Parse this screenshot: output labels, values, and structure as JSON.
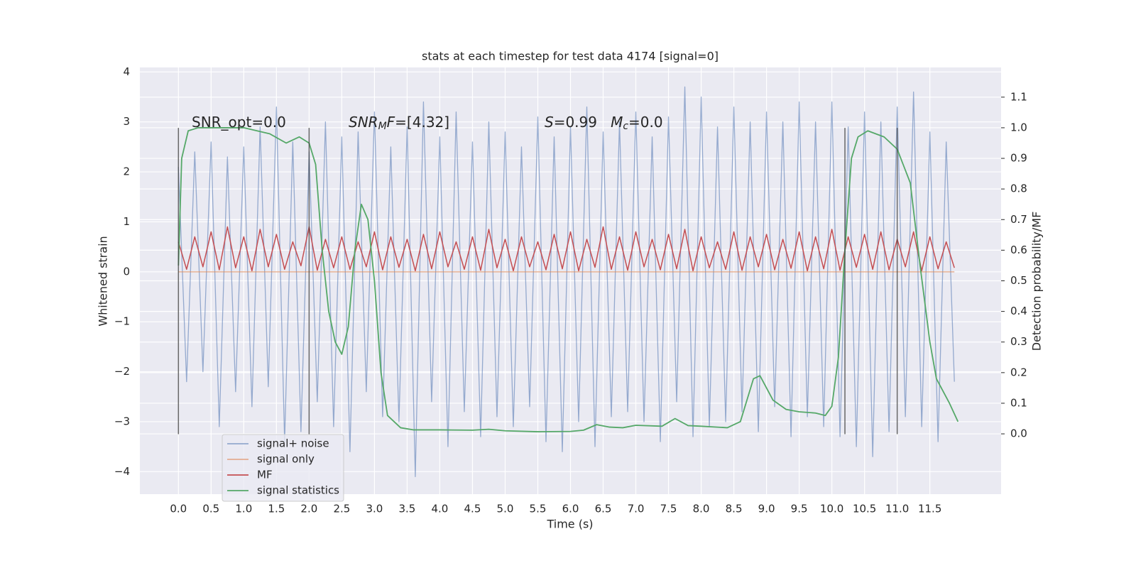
{
  "chart_data": {
    "type": "line",
    "title": "stats at each timestep for test data 4174 [signal=0]",
    "xlabel": "Time (s)",
    "ylabel": "Whitened strain",
    "y2label": "Detection probability/MF",
    "annotations": [
      [
        "SNR_opt=0.0"
      ],
      [
        "SNR",
        "M",
        "F",
        "=[4.32]"
      ],
      [
        "S",
        "=0.99   ",
        "M",
        "c",
        "=0.0"
      ]
    ],
    "vlines": [
      0,
      2.0,
      10.2,
      11.0
    ],
    "vline_range": [
      -3.25,
      2.88
    ],
    "xlim": [
      -0.59,
      12.59
    ],
    "ylim": [
      -4.45,
      4.09
    ],
    "y2lim": [
      -0.197,
      1.197
    ],
    "xticks": [
      {
        "value": 0,
        "label": "0.0"
      },
      {
        "value": 0.5,
        "label": "0.5"
      },
      {
        "value": 1,
        "label": "1.0"
      },
      {
        "value": 1.5,
        "label": "1.5"
      },
      {
        "value": 2,
        "label": "2.0"
      },
      {
        "value": 2.5,
        "label": "2.5"
      },
      {
        "value": 3,
        "label": "3.0"
      },
      {
        "value": 3.5,
        "label": "3.5"
      },
      {
        "value": 4,
        "label": "4.0"
      },
      {
        "value": 4.5,
        "label": "4.5"
      },
      {
        "value": 5,
        "label": "5.0"
      },
      {
        "value": 5.5,
        "label": "5.5"
      },
      {
        "value": 6,
        "label": "6.0"
      },
      {
        "value": 6.5,
        "label": "6.5"
      },
      {
        "value": 7,
        "label": "7.0"
      },
      {
        "value": 7.5,
        "label": "7.5"
      },
      {
        "value": 8,
        "label": "8.0"
      },
      {
        "value": 8.5,
        "label": "8.5"
      },
      {
        "value": 9,
        "label": "9.0"
      },
      {
        "value": 9.5,
        "label": "9.5"
      },
      {
        "value": 10,
        "label": "10.0"
      },
      {
        "value": 10.5,
        "label": "10.5"
      },
      {
        "value": 11,
        "label": "11.0"
      },
      {
        "value": 11.5,
        "label": "11.5"
      }
    ],
    "yticks": [
      {
        "value": -4,
        "label": "−4"
      },
      {
        "value": -3,
        "label": "−3"
      },
      {
        "value": -2,
        "label": "−2"
      },
      {
        "value": -1,
        "label": "−1"
      },
      0,
      1,
      2,
      3,
      4
    ],
    "y2ticks": [
      {
        "value": 0,
        "label": "0.0"
      },
      {
        "value": 0.1,
        "label": "0.1"
      },
      {
        "value": 0.2,
        "label": "0.2"
      },
      {
        "value": 0.3,
        "label": "0.3"
      },
      {
        "value": 0.4,
        "label": "0.4"
      },
      {
        "value": 0.5,
        "label": "0.5"
      },
      {
        "value": 0.6,
        "label": "0.6"
      },
      {
        "value": 0.7,
        "label": "0.7"
      },
      {
        "value": 0.8,
        "label": "0.8"
      },
      {
        "value": 0.9,
        "label": "0.9"
      },
      {
        "value": 1,
        "label": "1.0"
      },
      {
        "value": 1.1,
        "label": "1.1"
      }
    ],
    "grid": true,
    "legend": "lower left",
    "series": [
      {
        "name": "signal+ noise",
        "color": "#4c72b0",
        "x": [
          0,
          0.125,
          0.25,
          0.375,
          0.5,
          0.625,
          0.75,
          0.875,
          1,
          1.125,
          1.25,
          1.375,
          1.5,
          1.625,
          1.75,
          1.875,
          2,
          2.125,
          2.25,
          2.375,
          2.5,
          2.625,
          2.75,
          2.875,
          3,
          3.125,
          3.25,
          3.375,
          3.5,
          3.625,
          3.75,
          3.875,
          4,
          4.125,
          4.25,
          4.375,
          4.5,
          4.625,
          4.75,
          4.875,
          5,
          5.125,
          5.25,
          5.375,
          5.5,
          5.625,
          5.75,
          5.875,
          6,
          6.125,
          6.25,
          6.375,
          6.5,
          6.625,
          6.75,
          6.875,
          7,
          7.125,
          7.25,
          7.375,
          7.5,
          7.625,
          7.75,
          7.875,
          8,
          8.125,
          8.25,
          8.375,
          8.5,
          8.625,
          8.75,
          8.875,
          9,
          9.125,
          9.25,
          9.375,
          9.5,
          9.625,
          9.75,
          9.875,
          10,
          10.125,
          10.25,
          10.375,
          10.5,
          10.625,
          10.75,
          10.875,
          11,
          11.125,
          11.25,
          11.375,
          11.5,
          11.625,
          11.75,
          11.875
        ],
        "values": [
          2.1,
          -2.2,
          2.4,
          -2.0,
          2.6,
          -3.1,
          2.3,
          -2.4,
          2.5,
          -2.7,
          2.9,
          -2.3,
          3.3,
          -3.4,
          2.6,
          -3.2,
          2.4,
          -2.6,
          3.0,
          -3.1,
          2.7,
          -3.6,
          2.8,
          -2.4,
          3.2,
          -2.9,
          2.5,
          -3.0,
          2.9,
          -4.1,
          3.4,
          -2.6,
          2.7,
          -3.5,
          3.2,
          -2.8,
          2.6,
          -3.3,
          3.0,
          -2.9,
          2.8,
          -3.1,
          2.5,
          -2.7,
          3.1,
          -3.4,
          2.7,
          -3.6,
          2.9,
          -3.0,
          3.3,
          -3.5,
          2.8,
          -2.9,
          3.0,
          -2.8,
          3.2,
          -3.0,
          2.7,
          -3.4,
          3.1,
          -2.6,
          3.7,
          -3.3,
          3.5,
          -3.1,
          2.9,
          -3.0,
          3.3,
          -2.8,
          3.0,
          -3.2,
          3.2,
          -2.7,
          3.0,
          -3.3,
          3.4,
          -2.9,
          3.0,
          -3.1,
          3.4,
          -3.3,
          2.9,
          -3.5,
          3.2,
          -3.7,
          3.0,
          -3.2,
          3.3,
          -2.9,
          3.6,
          -3.1,
          2.8,
          -3.4,
          2.6,
          -2.2
        ]
      },
      {
        "name": "signal only",
        "color": "#dd8452",
        "x": [
          0,
          11.875
        ],
        "values": [
          0,
          0
        ]
      },
      {
        "name": "MF",
        "color": "#c44e52",
        "x": [
          0,
          0.125,
          0.25,
          0.375,
          0.5,
          0.625,
          0.75,
          0.875,
          1,
          1.125,
          1.25,
          1.375,
          1.5,
          1.625,
          1.75,
          1.875,
          2,
          2.125,
          2.25,
          2.375,
          2.5,
          2.625,
          2.75,
          2.875,
          3,
          3.125,
          3.25,
          3.375,
          3.5,
          3.625,
          3.75,
          3.875,
          4,
          4.125,
          4.25,
          4.375,
          4.5,
          4.625,
          4.75,
          4.875,
          5,
          5.125,
          5.25,
          5.375,
          5.5,
          5.625,
          5.75,
          5.875,
          6,
          6.125,
          6.25,
          6.375,
          6.5,
          6.625,
          6.75,
          6.875,
          7,
          7.125,
          7.25,
          7.375,
          7.5,
          7.625,
          7.75,
          7.875,
          8,
          8.125,
          8.25,
          8.375,
          8.5,
          8.625,
          8.75,
          8.875,
          9,
          9.125,
          9.25,
          9.375,
          9.5,
          9.625,
          9.75,
          9.875,
          10,
          10.125,
          10.25,
          10.375,
          10.5,
          10.625,
          10.75,
          10.875,
          11,
          11.125,
          11.25,
          11.375,
          11.5,
          11.625,
          11.75,
          11.875
        ],
        "values": [
          0.6,
          0.05,
          0.7,
          0.1,
          0.8,
          0.04,
          0.9,
          0.08,
          0.7,
          0.02,
          0.85,
          0.1,
          0.75,
          0.05,
          0.6,
          0.12,
          0.9,
          0.03,
          0.65,
          0.08,
          0.7,
          0.05,
          0.6,
          0.1,
          0.8,
          0.04,
          0.7,
          0.09,
          0.65,
          0.02,
          0.75,
          0.06,
          0.8,
          0.1,
          0.6,
          0.05,
          0.7,
          0.03,
          0.85,
          0.08,
          0.65,
          0.02,
          0.7,
          0.1,
          0.6,
          0.04,
          0.75,
          0.06,
          0.8,
          0.02,
          0.65,
          0.09,
          0.9,
          0.05,
          0.7,
          0.03,
          0.8,
          0.1,
          0.65,
          0.04,
          0.75,
          0.06,
          0.85,
          0.02,
          0.7,
          0.08,
          0.6,
          0.05,
          0.8,
          0.03,
          0.7,
          0.1,
          0.75,
          0.04,
          0.65,
          0.07,
          0.8,
          0.02,
          0.7,
          0.06,
          0.85,
          0.03,
          0.7,
          0.09,
          0.75,
          0.05,
          0.8,
          0.04,
          0.65,
          0.1,
          0.8,
          0.02,
          0.7,
          0.06,
          0.6,
          0.08
        ]
      },
      {
        "name": "signal statistics",
        "color": "#55a868",
        "axis": "y2",
        "x": [
          0,
          0.05,
          0.15,
          0.3,
          1.0,
          1.4,
          1.65,
          1.85,
          2.0,
          2.1,
          2.2,
          2.3,
          2.4,
          2.5,
          2.6,
          2.7,
          2.8,
          2.9,
          3.0,
          3.1,
          3.2,
          3.4,
          3.6,
          4.0,
          4.5,
          4.75,
          5.0,
          5.5,
          6.0,
          6.2,
          6.4,
          6.6,
          6.8,
          7.0,
          7.4,
          7.6,
          7.8,
          8.0,
          8.4,
          8.6,
          8.8,
          8.9,
          9.1,
          9.3,
          9.5,
          9.75,
          9.9,
          10.0,
          10.1,
          10.2,
          10.3,
          10.4,
          10.55,
          10.8,
          11.0,
          11.2,
          11.35,
          11.5,
          11.6,
          11.8,
          11.93
        ],
        "values": [
          0.55,
          0.9,
          0.99,
          1.0,
          1.0,
          0.98,
          0.95,
          0.97,
          0.95,
          0.88,
          0.6,
          0.4,
          0.3,
          0.26,
          0.35,
          0.6,
          0.75,
          0.7,
          0.5,
          0.2,
          0.06,
          0.02,
          0.013,
          0.013,
          0.012,
          0.015,
          0.01,
          0.007,
          0.008,
          0.012,
          0.03,
          0.022,
          0.02,
          0.028,
          0.025,
          0.05,
          0.027,
          0.025,
          0.02,
          0.04,
          0.18,
          0.19,
          0.11,
          0.08,
          0.072,
          0.068,
          0.06,
          0.09,
          0.25,
          0.6,
          0.9,
          0.97,
          0.99,
          0.97,
          0.93,
          0.82,
          0.55,
          0.3,
          0.18,
          0.1,
          0.04
        ]
      }
    ]
  }
}
